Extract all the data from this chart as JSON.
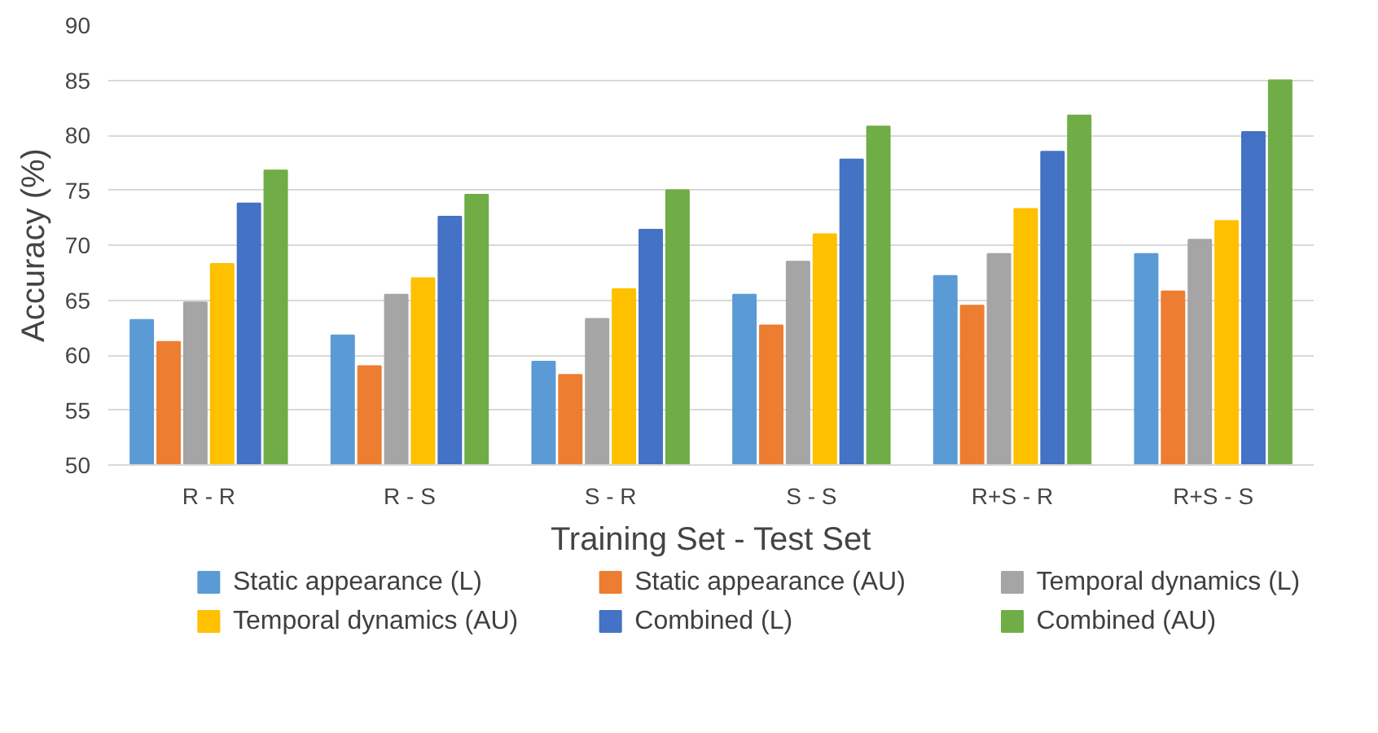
{
  "chart_data": {
    "type": "bar",
    "xlabel": "Training Set - Test Set",
    "ylabel": "Accuracy (%)",
    "categories": [
      "R - R",
      "R - S",
      "S - R",
      "S - S",
      "R+S - R",
      "R+S - S"
    ],
    "ylim": [
      50,
      90
    ],
    "yticks": [
      50,
      55,
      60,
      65,
      70,
      75,
      80,
      85,
      90
    ],
    "grid": "y",
    "legend": "bottom",
    "series": [
      {
        "name": "Static appearance (L)",
        "color": "#5b9bd5",
        "values": [
          63.2,
          61.8,
          59.4,
          65.5,
          67.2,
          69.2
        ]
      },
      {
        "name": "Static appearance (AU)",
        "color": "#ed7d31",
        "values": [
          61.2,
          59.0,
          58.2,
          62.7,
          64.5,
          65.8
        ]
      },
      {
        "name": "Temporal dynamics (L)",
        "color": "#a5a5a5",
        "values": [
          64.8,
          65.5,
          63.3,
          68.5,
          69.2,
          70.5
        ]
      },
      {
        "name": "Temporal dynamics (AU)",
        "color": "#ffc000",
        "values": [
          68.3,
          67.0,
          66.0,
          71.0,
          73.3,
          72.2
        ]
      },
      {
        "name": "Combined (L)",
        "color": "#4472c4",
        "values": [
          73.8,
          72.6,
          71.4,
          77.8,
          78.5,
          80.3
        ]
      },
      {
        "name": "Combined (AU)",
        "color": "#70ad47",
        "values": [
          76.8,
          74.6,
          75.0,
          80.8,
          81.8,
          85.0
        ]
      }
    ]
  }
}
